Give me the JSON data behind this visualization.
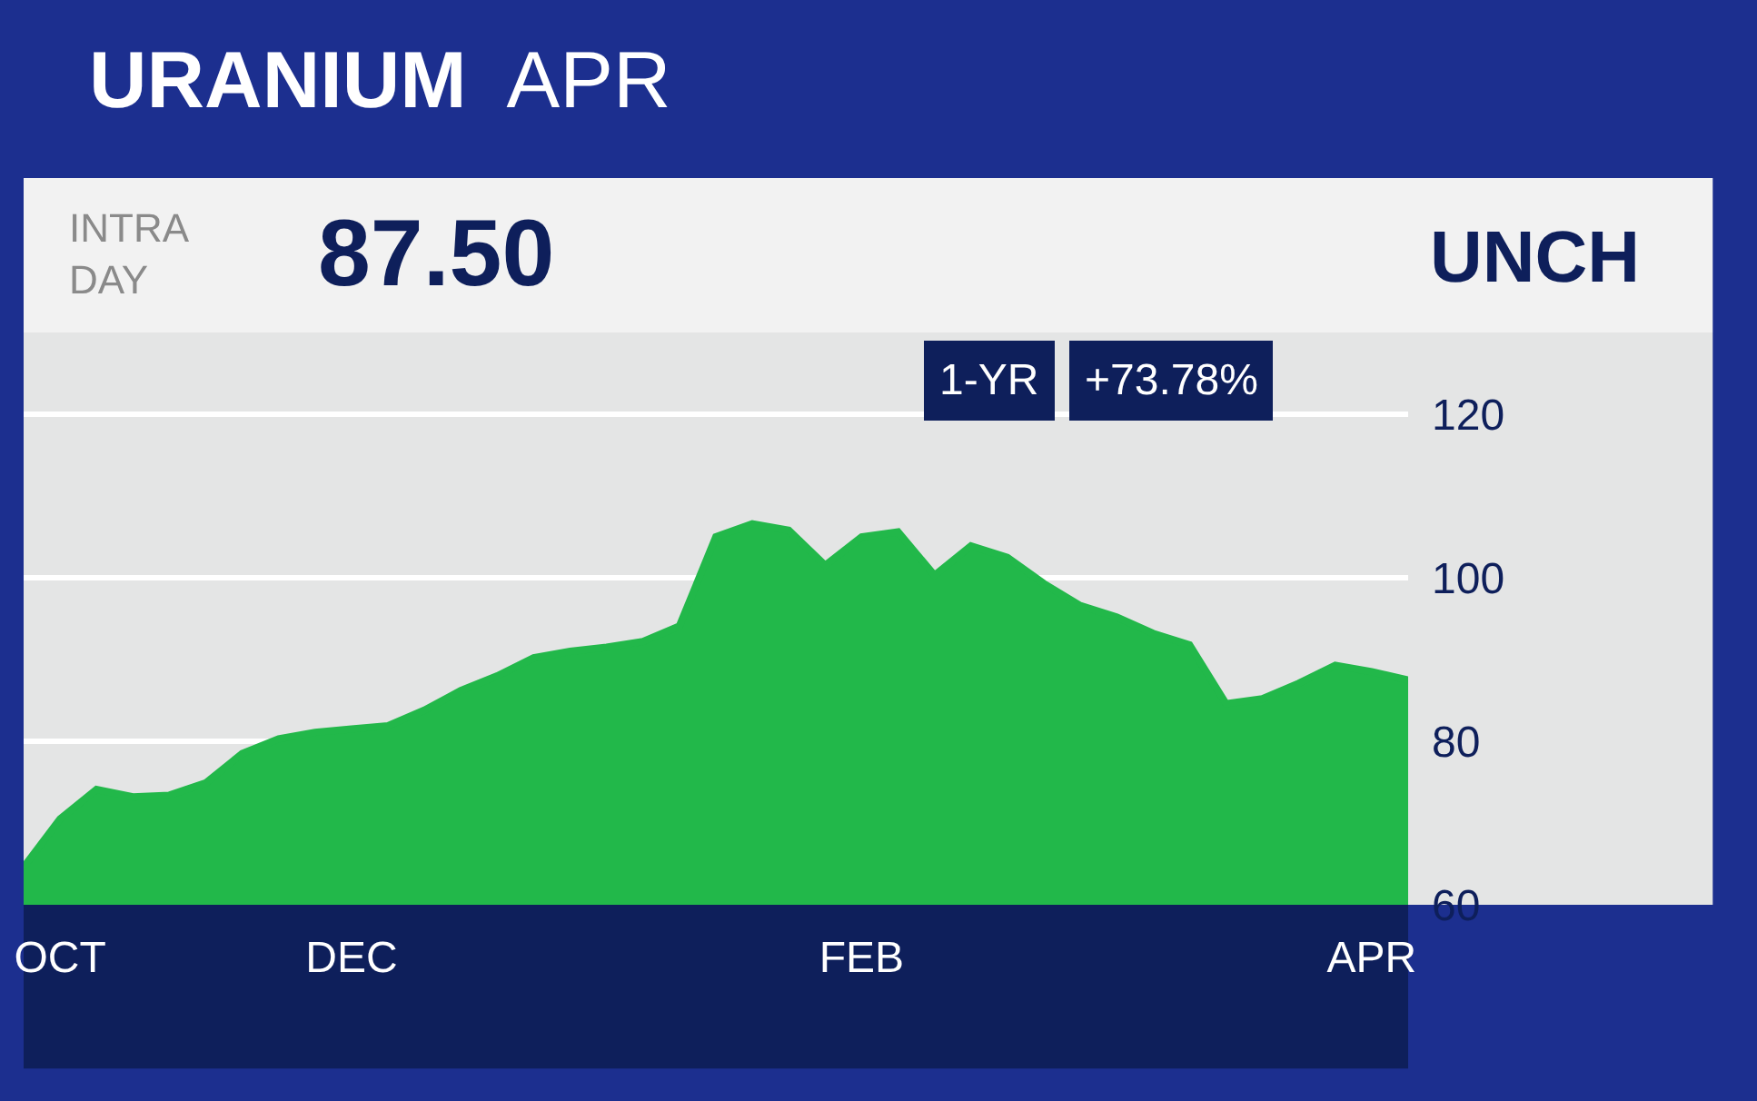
{
  "chart_data": {
    "type": "area",
    "title": "URANIUM",
    "subtitle": "APR",
    "annotations": [
      "INTRA\nDAY",
      "87.50",
      "UNCH",
      "1-YR",
      "+73.78%"
    ],
    "categories": [
      null,
      "OCT",
      null,
      null,
      null,
      null,
      null,
      null,
      null,
      "DEC",
      null,
      null,
      null,
      null,
      null,
      null,
      null,
      null,
      null,
      null,
      null,
      null,
      null,
      "FEB",
      null,
      null,
      null,
      null,
      null,
      null,
      null,
      null,
      null,
      null,
      null,
      null,
      null,
      "APR",
      null
    ],
    "series": [
      {
        "color": "#22b84a",
        "values": [
          64.6,
          70.5,
          74.1,
          73.2,
          73.4,
          74.9,
          78.5,
          80.3,
          81.1,
          81.5,
          81.9,
          83.8,
          86.2,
          88.0,
          90.2,
          91.0,
          91.5,
          92.2,
          94.1,
          105,
          106.6,
          105.8,
          101.5,
          105,
          105.6,
          100.3,
          103.9,
          102.5,
          99.3,
          96.6,
          95.2,
          93.2,
          91.8,
          84.6,
          85.2,
          87.1,
          89.3,
          88.5,
          87.5
        ]
      }
    ],
    "ylim": [
      60,
      130
    ],
    "yticks": [
      60,
      80,
      100,
      120
    ],
    "grid": "y"
  }
}
